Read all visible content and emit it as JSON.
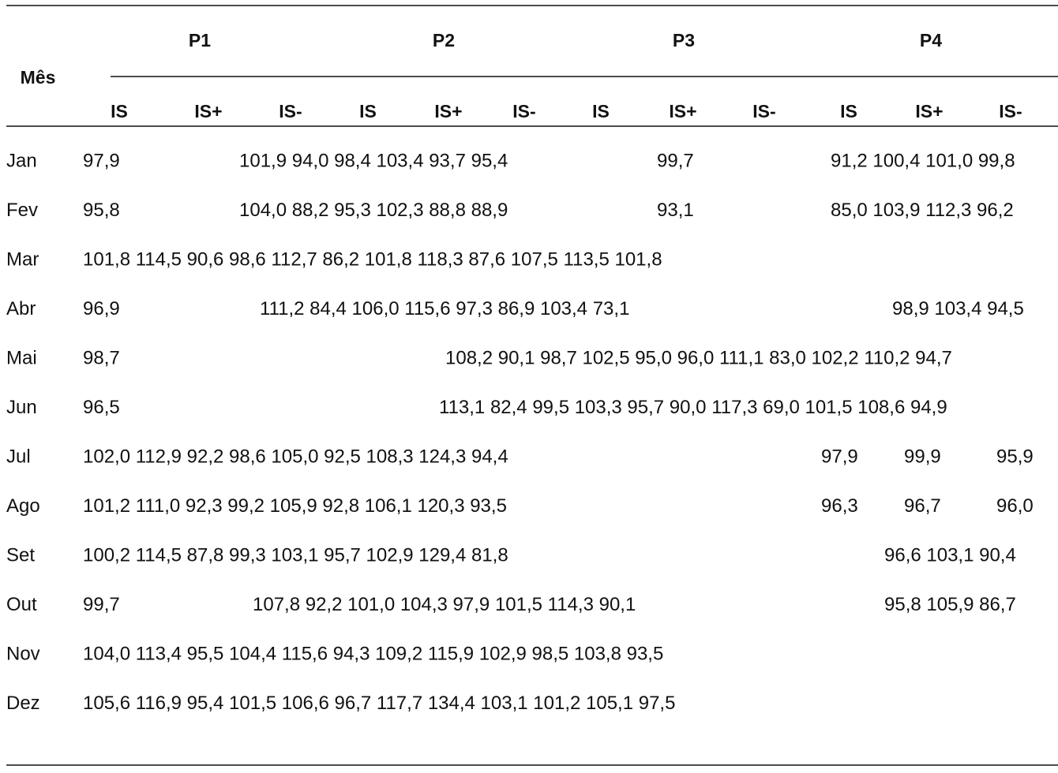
{
  "table": {
    "stub": "Mês",
    "groups": [
      {
        "label": "P1",
        "columns": [
          "IS",
          "IS+",
          "IS-"
        ]
      },
      {
        "label": "P2",
        "columns": [
          "IS",
          "IS+",
          "IS-"
        ]
      },
      {
        "label": "P3",
        "columns": [
          "IS",
          "IS+",
          "IS-"
        ]
      },
      {
        "label": "P4",
        "columns": [
          "IS",
          "IS+",
          "IS-"
        ]
      }
    ],
    "rows": [
      {
        "label": "Jan",
        "cells": [
          "97,9",
          "101,9 94,0 98,4 103,4 93,7 95,4",
          "99,7",
          "91,2 100,4 101,0 99,8"
        ]
      },
      {
        "label": "Fev",
        "cells": [
          "95,8",
          "104,0 88,2 95,3 102,3 88,8 88,9",
          "93,1",
          "85,0 103,9 112,3 96,2"
        ]
      },
      {
        "label": "Mar",
        "cells": [
          "101,8 114,5 90,6 98,6 112,7 86,2 101,8 118,3 87,6 107,5 113,5 101,8"
        ]
      },
      {
        "label": "Abr",
        "cells": [
          "96,9",
          "111,2 84,4 106,0 115,6 97,3 86,9 103,4 73,1",
          "98,9 103,4 94,5"
        ]
      },
      {
        "label": "Mai",
        "cells": [
          "98,7",
          "108,2 90,1 98,7 102,5 95,0 96,0 111,1 83,0 102,2 110,2 94,7"
        ]
      },
      {
        "label": "Jun",
        "cells": [
          "96,5",
          "113,1 82,4 99,5 103,3 95,7 90,0 117,3 69,0 101,5 108,6 94,9"
        ]
      },
      {
        "label": "Jul",
        "cells": [
          "102,0 112,9 92,2 98,6 105,0 92,5 108,3 124,3 94,4",
          "97,9",
          "99,9",
          "95,9"
        ]
      },
      {
        "label": "Ago",
        "cells": [
          "101,2 111,0 92,3 99,2 105,9 92,8 106,1 120,3 93,5",
          "96,3",
          "96,7",
          "96,0"
        ]
      },
      {
        "label": "Set",
        "cells": [
          "100,2 114,5 87,8 99,3 103,1 95,7 102,9 129,4 81,8",
          "96,6 103,1 90,4"
        ]
      },
      {
        "label": "Out",
        "cells": [
          "99,7",
          "107,8 92,2 101,0 104,3 97,9 101,5 114,3 90,1",
          "95,8 105,9 86,7"
        ]
      },
      {
        "label": "Nov",
        "cells": [
          "104,0 113,4 95,5 104,4 115,6 94,3 109,2 115,9 102,9 98,5 103,8 93,5"
        ]
      },
      {
        "label": "Dez",
        "cells": [
          "105,6 116,9 95,4 101,5 106,6 96,7 117,7 134,4 103,1 101,2 105,1 97,5"
        ]
      }
    ]
  }
}
